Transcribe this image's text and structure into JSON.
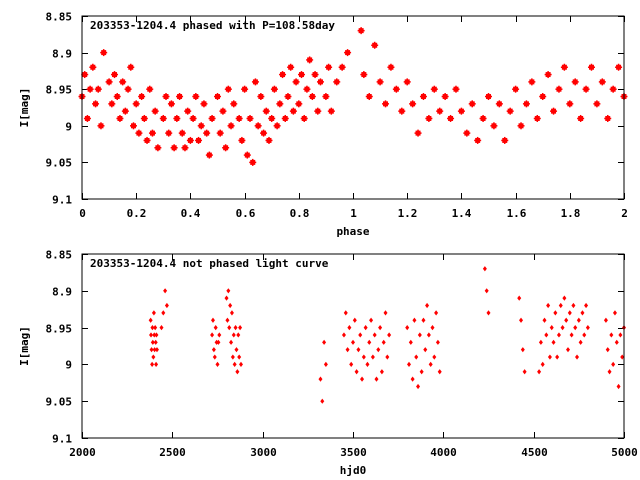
{
  "chart_data": [
    {
      "type": "scatter",
      "title": "203353-1204.4 phased with P=108.58day",
      "xlabel": "phase",
      "ylabel": "I[mag]",
      "xlim": [
        0,
        2
      ],
      "ylim": [
        9.1,
        8.85
      ],
      "y_inverted": true,
      "grid": false,
      "legend": "none",
      "marker": "star",
      "color": "#ff0000",
      "xticks": [
        0,
        0.2,
        0.4,
        0.6,
        0.8,
        1,
        1.2,
        1.4,
        1.6,
        1.8,
        2
      ],
      "xtick_labels": [
        "0",
        "0.2",
        "0.4",
        "0.6",
        "0.8",
        "1",
        "1.2",
        "1.4",
        "1.6",
        "1.8",
        "2"
      ],
      "yticks": [
        8.85,
        8.9,
        8.95,
        9,
        9.05,
        9.1
      ],
      "ytick_labels": [
        "8.85",
        "8.9",
        "8.95",
        "9",
        "9.05",
        "9.1"
      ],
      "points": [
        [
          0.0,
          8.96
        ],
        [
          0.01,
          8.93
        ],
        [
          0.02,
          8.99
        ],
        [
          0.03,
          8.95
        ],
        [
          0.04,
          8.92
        ],
        [
          0.05,
          8.97
        ],
        [
          0.06,
          8.95
        ],
        [
          0.07,
          9.0
        ],
        [
          0.08,
          8.9
        ],
        [
          0.1,
          8.94
        ],
        [
          0.11,
          8.97
        ],
        [
          0.12,
          8.93
        ],
        [
          0.13,
          8.96
        ],
        [
          0.14,
          8.99
        ],
        [
          0.15,
          8.94
        ],
        [
          0.16,
          8.98
        ],
        [
          0.17,
          8.95
        ],
        [
          0.18,
          8.92
        ],
        [
          0.19,
          9.0
        ],
        [
          0.2,
          8.97
        ],
        [
          0.21,
          9.01
        ],
        [
          0.22,
          8.96
        ],
        [
          0.23,
          8.99
        ],
        [
          0.24,
          9.02
        ],
        [
          0.25,
          8.95
        ],
        [
          0.26,
          9.01
        ],
        [
          0.27,
          8.98
        ],
        [
          0.28,
          9.03
        ],
        [
          0.3,
          8.99
        ],
        [
          0.31,
          8.96
        ],
        [
          0.32,
          9.01
        ],
        [
          0.33,
          8.97
        ],
        [
          0.34,
          9.03
        ],
        [
          0.35,
          8.99
        ],
        [
          0.36,
          8.96
        ],
        [
          0.37,
          9.01
        ],
        [
          0.38,
          9.03
        ],
        [
          0.39,
          8.98
        ],
        [
          0.4,
          9.02
        ],
        [
          0.41,
          8.99
        ],
        [
          0.42,
          8.96
        ],
        [
          0.43,
          9.02
        ],
        [
          0.44,
          9.0
        ],
        [
          0.45,
          8.97
        ],
        [
          0.46,
          9.01
        ],
        [
          0.47,
          9.04
        ],
        [
          0.48,
          8.99
        ],
        [
          0.5,
          8.96
        ],
        [
          0.51,
          9.01
        ],
        [
          0.52,
          8.98
        ],
        [
          0.53,
          9.03
        ],
        [
          0.54,
          8.95
        ],
        [
          0.55,
          9.0
        ],
        [
          0.56,
          8.97
        ],
        [
          0.58,
          8.99
        ],
        [
          0.59,
          9.02
        ],
        [
          0.6,
          8.95
        ],
        [
          0.61,
          9.04
        ],
        [
          0.62,
          8.99
        ],
        [
          0.63,
          9.05
        ],
        [
          0.64,
          8.94
        ],
        [
          0.65,
          9.0
        ],
        [
          0.66,
          8.96
        ],
        [
          0.67,
          9.01
        ],
        [
          0.68,
          8.98
        ],
        [
          0.69,
          9.02
        ],
        [
          0.7,
          8.99
        ],
        [
          0.71,
          8.95
        ],
        [
          0.72,
          9.0
        ],
        [
          0.73,
          8.97
        ],
        [
          0.74,
          8.93
        ],
        [
          0.75,
          8.99
        ],
        [
          0.76,
          8.96
        ],
        [
          0.77,
          8.92
        ],
        [
          0.78,
          8.98
        ],
        [
          0.79,
          8.94
        ],
        [
          0.8,
          8.97
        ],
        [
          0.81,
          8.93
        ],
        [
          0.82,
          8.99
        ],
        [
          0.83,
          8.95
        ],
        [
          0.84,
          8.91
        ],
        [
          0.85,
          8.96
        ],
        [
          0.86,
          8.93
        ],
        [
          0.87,
          8.98
        ],
        [
          0.88,
          8.94
        ],
        [
          0.9,
          8.96
        ],
        [
          0.91,
          8.92
        ],
        [
          0.92,
          8.98
        ],
        [
          0.94,
          8.94
        ],
        [
          0.96,
          8.92
        ],
        [
          0.98,
          8.9
        ],
        [
          1.03,
          8.87
        ],
        [
          1.04,
          8.93
        ],
        [
          1.06,
          8.96
        ],
        [
          1.08,
          8.89
        ],
        [
          1.1,
          8.94
        ],
        [
          1.12,
          8.97
        ],
        [
          1.14,
          8.92
        ],
        [
          1.16,
          8.95
        ],
        [
          1.18,
          8.98
        ],
        [
          1.2,
          8.94
        ],
        [
          1.22,
          8.97
        ],
        [
          1.24,
          9.01
        ],
        [
          1.26,
          8.96
        ],
        [
          1.28,
          8.99
        ],
        [
          1.3,
          8.95
        ],
        [
          1.32,
          8.98
        ],
        [
          1.34,
          8.96
        ],
        [
          1.36,
          8.99
        ],
        [
          1.38,
          8.95
        ],
        [
          1.4,
          8.98
        ],
        [
          1.42,
          9.01
        ],
        [
          1.44,
          8.97
        ],
        [
          1.46,
          9.02
        ],
        [
          1.48,
          8.99
        ],
        [
          1.5,
          8.96
        ],
        [
          1.52,
          9.0
        ],
        [
          1.54,
          8.97
        ],
        [
          1.56,
          9.02
        ],
        [
          1.58,
          8.98
        ],
        [
          1.6,
          8.95
        ],
        [
          1.62,
          9.0
        ],
        [
          1.64,
          8.97
        ],
        [
          1.66,
          8.94
        ],
        [
          1.68,
          8.99
        ],
        [
          1.7,
          8.96
        ],
        [
          1.72,
          8.93
        ],
        [
          1.74,
          8.98
        ],
        [
          1.76,
          8.95
        ],
        [
          1.78,
          8.92
        ],
        [
          1.8,
          8.97
        ],
        [
          1.82,
          8.94
        ],
        [
          1.84,
          8.99
        ],
        [
          1.86,
          8.95
        ],
        [
          1.88,
          8.92
        ],
        [
          1.9,
          8.97
        ],
        [
          1.92,
          8.94
        ],
        [
          1.94,
          8.99
        ],
        [
          1.96,
          8.95
        ],
        [
          1.98,
          8.92
        ],
        [
          2.0,
          8.96
        ]
      ]
    },
    {
      "type": "scatter",
      "title": "203353-1204.4 not phased light curve",
      "xlabel": "hjd0",
      "ylabel": "I[mag]",
      "xlim": [
        2000,
        5000
      ],
      "ylim": [
        9.1,
        8.85
      ],
      "y_inverted": true,
      "grid": false,
      "legend": "none",
      "marker": "diamond",
      "color": "#ff0000",
      "xticks": [
        2000,
        2500,
        3000,
        3500,
        4000,
        4500,
        5000
      ],
      "xtick_labels": [
        "2000",
        "2500",
        "3000",
        "3500",
        "4000",
        "4500",
        "5000"
      ],
      "yticks": [
        8.85,
        8.9,
        8.95,
        9,
        9.05,
        9.1
      ],
      "ytick_labels": [
        "8.85",
        "8.9",
        "8.95",
        "9",
        "9.05",
        "9.1"
      ],
      "points": [
        [
          2380,
          8.94
        ],
        [
          2382,
          8.96
        ],
        [
          2385,
          8.98
        ],
        [
          2388,
          9.0
        ],
        [
          2390,
          8.95
        ],
        [
          2392,
          8.97
        ],
        [
          2395,
          8.99
        ],
        [
          2398,
          8.93
        ],
        [
          2400,
          8.96
        ],
        [
          2402,
          8.98
        ],
        [
          2405,
          8.95
        ],
        [
          2408,
          8.97
        ],
        [
          2410,
          9.0
        ],
        [
          2412,
          8.96
        ],
        [
          2415,
          8.98
        ],
        [
          2440,
          8.95
        ],
        [
          2450,
          8.93
        ],
        [
          2460,
          8.9
        ],
        [
          2470,
          8.92
        ],
        [
          2720,
          8.96
        ],
        [
          2725,
          8.94
        ],
        [
          2730,
          8.98
        ],
        [
          2735,
          8.99
        ],
        [
          2740,
          8.95
        ],
        [
          2745,
          8.97
        ],
        [
          2750,
          9.0
        ],
        [
          2755,
          8.97
        ],
        [
          2760,
          8.96
        ],
        [
          2800,
          8.91
        ],
        [
          2805,
          8.94
        ],
        [
          2810,
          8.9
        ],
        [
          2815,
          8.95
        ],
        [
          2820,
          8.92
        ],
        [
          2825,
          8.97
        ],
        [
          2830,
          8.93
        ],
        [
          2835,
          8.99
        ],
        [
          2840,
          8.96
        ],
        [
          2845,
          9.0
        ],
        [
          2850,
          8.95
        ],
        [
          2855,
          8.98
        ],
        [
          2860,
          9.01
        ],
        [
          2865,
          8.96
        ],
        [
          2870,
          8.99
        ],
        [
          2875,
          8.95
        ],
        [
          2880,
          9.0
        ],
        [
          3320,
          9.02
        ],
        [
          3330,
          9.05
        ],
        [
          3340,
          8.97
        ],
        [
          3350,
          9.0
        ],
        [
          3450,
          8.96
        ],
        [
          3460,
          8.93
        ],
        [
          3470,
          8.98
        ],
        [
          3480,
          8.95
        ],
        [
          3490,
          9.0
        ],
        [
          3500,
          8.97
        ],
        [
          3510,
          8.94
        ],
        [
          3520,
          9.01
        ],
        [
          3530,
          8.98
        ],
        [
          3540,
          8.96
        ],
        [
          3550,
          9.02
        ],
        [
          3560,
          8.99
        ],
        [
          3570,
          8.95
        ],
        [
          3580,
          9.0
        ],
        [
          3590,
          8.97
        ],
        [
          3600,
          8.94
        ],
        [
          3610,
          8.99
        ],
        [
          3620,
          8.96
        ],
        [
          3630,
          9.02
        ],
        [
          3640,
          8.98
        ],
        [
          3650,
          8.95
        ],
        [
          3660,
          9.01
        ],
        [
          3670,
          8.97
        ],
        [
          3680,
          8.93
        ],
        [
          3690,
          8.99
        ],
        [
          3700,
          8.96
        ],
        [
          3800,
          8.95
        ],
        [
          3810,
          9.0
        ],
        [
          3820,
          8.97
        ],
        [
          3830,
          9.02
        ],
        [
          3840,
          8.94
        ],
        [
          3850,
          8.99
        ],
        [
          3860,
          9.03
        ],
        [
          3870,
          8.96
        ],
        [
          3880,
          9.01
        ],
        [
          3890,
          8.94
        ],
        [
          3900,
          8.98
        ],
        [
          3910,
          8.92
        ],
        [
          3920,
          8.96
        ],
        [
          3930,
          9.0
        ],
        [
          3940,
          8.95
        ],
        [
          3950,
          8.99
        ],
        [
          3960,
          8.93
        ],
        [
          3970,
          8.97
        ],
        [
          3980,
          9.01
        ],
        [
          4230,
          8.87
        ],
        [
          4240,
          8.9
        ],
        [
          4250,
          8.93
        ],
        [
          4420,
          8.91
        ],
        [
          4430,
          8.94
        ],
        [
          4440,
          8.98
        ],
        [
          4450,
          9.01
        ],
        [
          4530,
          9.01
        ],
        [
          4540,
          8.97
        ],
        [
          4550,
          9.0
        ],
        [
          4560,
          8.94
        ],
        [
          4570,
          8.96
        ],
        [
          4580,
          8.92
        ],
        [
          4590,
          8.99
        ],
        [
          4600,
          8.95
        ],
        [
          4610,
          8.97
        ],
        [
          4620,
          8.93
        ],
        [
          4630,
          8.99
        ],
        [
          4640,
          8.96
        ],
        [
          4650,
          8.92
        ],
        [
          4660,
          8.95
        ],
        [
          4670,
          8.91
        ],
        [
          4680,
          8.94
        ],
        [
          4690,
          8.98
        ],
        [
          4700,
          8.93
        ],
        [
          4710,
          8.96
        ],
        [
          4720,
          8.92
        ],
        [
          4730,
          8.95
        ],
        [
          4740,
          8.99
        ],
        [
          4750,
          8.94
        ],
        [
          4760,
          8.97
        ],
        [
          4770,
          8.93
        ],
        [
          4780,
          8.96
        ],
        [
          4790,
          8.92
        ],
        [
          4800,
          8.95
        ],
        [
          4900,
          8.94
        ],
        [
          4910,
          8.98
        ],
        [
          4920,
          9.01
        ],
        [
          4930,
          8.96
        ],
        [
          4940,
          9.0
        ],
        [
          4950,
          8.93
        ],
        [
          4960,
          8.97
        ],
        [
          4970,
          9.03
        ],
        [
          4980,
          8.96
        ],
        [
          4990,
          8.99
        ],
        [
          5000,
          8.95
        ]
      ]
    }
  ]
}
